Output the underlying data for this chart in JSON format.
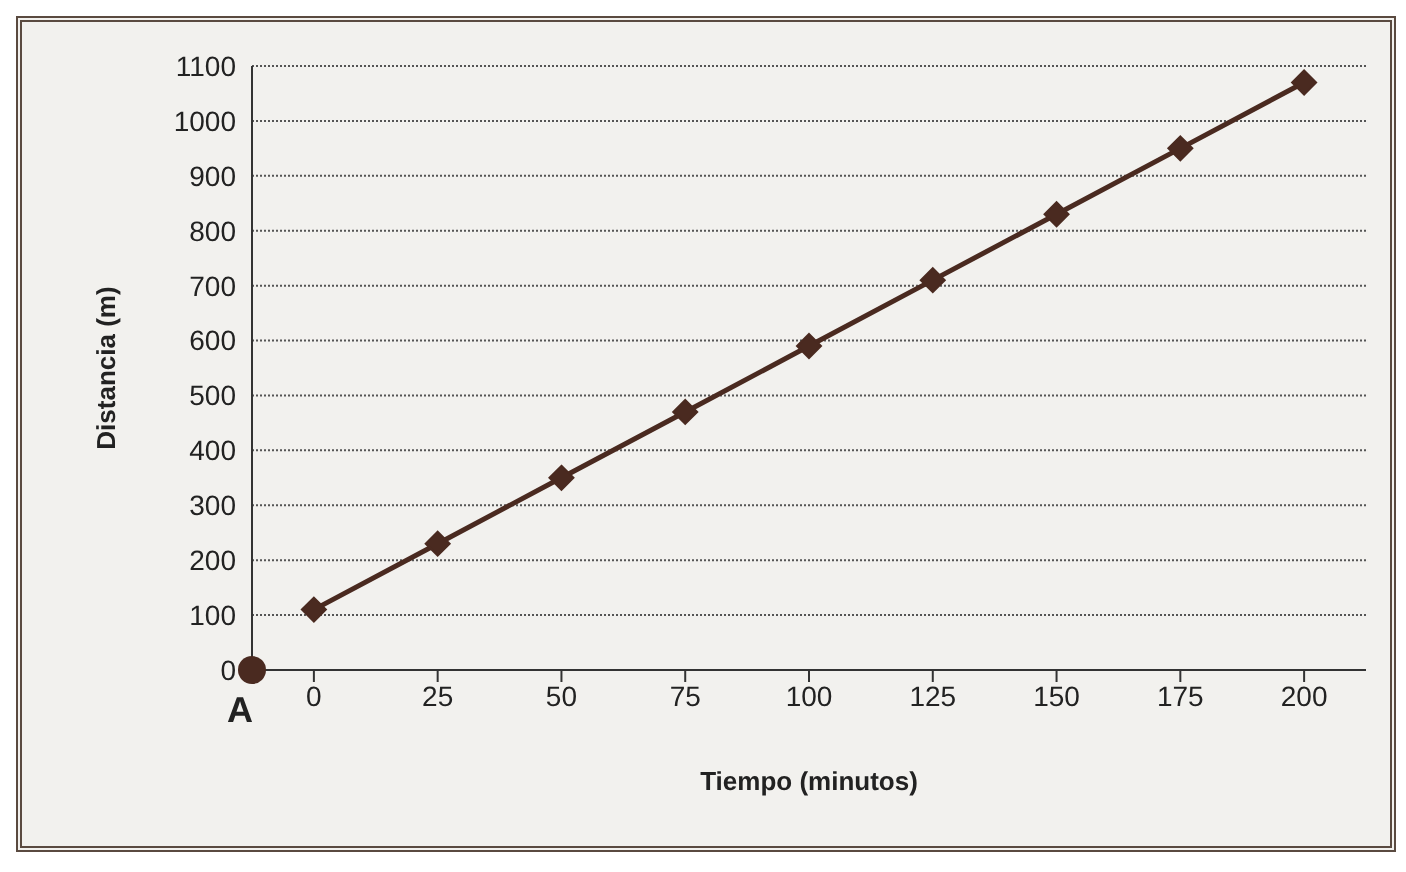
{
  "chart_data": {
    "type": "line",
    "xlabel": "Tiempo (minutos)",
    "ylabel": "Distancia (m)",
    "categories": [
      "0",
      "25",
      "50",
      "75",
      "100",
      "125",
      "150",
      "175",
      "200"
    ],
    "series": [
      {
        "color": "#4a2a20",
        "values": [
          110,
          230,
          350,
          470,
          590,
          710,
          830,
          950,
          1070
        ]
      }
    ],
    "ylim": [
      0,
      1100
    ],
    "yticks": [
      0,
      100,
      200,
      300,
      400,
      500,
      600,
      700,
      800,
      900,
      1000,
      1100
    ],
    "grid": "y",
    "marker": "diamond",
    "line_style": "solid",
    "annotations": [
      "A"
    ]
  }
}
